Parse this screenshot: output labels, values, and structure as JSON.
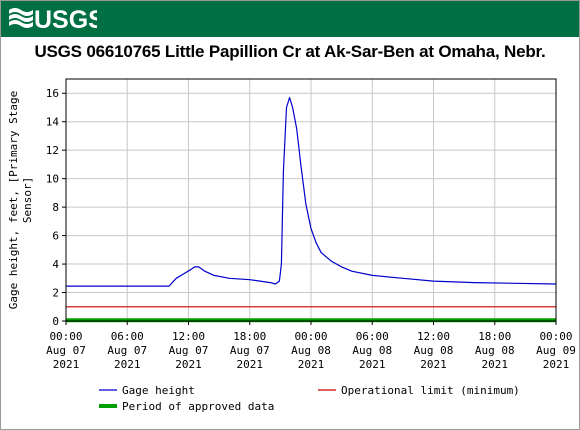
{
  "header": {
    "logo_text": "USGS",
    "brand_color": "#006f41"
  },
  "chart_data": {
    "type": "line",
    "title": "USGS 06610765 Little Papillion Cr at Ak-Sar-Ben at Omaha, Nebr.",
    "ylabel": "Gage height, feet, [Primary Stage Sensor]",
    "ylim": [
      0,
      17
    ],
    "yticks": [
      0,
      2,
      4,
      6,
      8,
      10,
      12,
      14,
      16
    ],
    "xlim_hours": [
      0,
      48
    ],
    "xticks": [
      {
        "hour": 0,
        "time": "00:00",
        "date": "Aug 07",
        "year": "2021"
      },
      {
        "hour": 6,
        "time": "06:00",
        "date": "Aug 07",
        "year": "2021"
      },
      {
        "hour": 12,
        "time": "12:00",
        "date": "Aug 07",
        "year": "2021"
      },
      {
        "hour": 18,
        "time": "18:00",
        "date": "Aug 07",
        "year": "2021"
      },
      {
        "hour": 24,
        "time": "00:00",
        "date": "Aug 08",
        "year": "2021"
      },
      {
        "hour": 30,
        "time": "06:00",
        "date": "Aug 08",
        "year": "2021"
      },
      {
        "hour": 36,
        "time": "12:00",
        "date": "Aug 08",
        "year": "2021"
      },
      {
        "hour": 42,
        "time": "18:00",
        "date": "Aug 08",
        "year": "2021"
      },
      {
        "hour": 48,
        "time": "00:00",
        "date": "Aug 09",
        "year": "2021"
      }
    ],
    "grid": true,
    "series": [
      {
        "name": "Gage height",
        "color": "#0000cc",
        "points": [
          [
            0,
            2.45
          ],
          [
            6,
            2.45
          ],
          [
            10.1,
            2.45
          ],
          [
            10.4,
            2.7
          ],
          [
            10.8,
            3.0
          ],
          [
            11.5,
            3.3
          ],
          [
            12.2,
            3.6
          ],
          [
            12.6,
            3.8
          ],
          [
            13.0,
            3.8
          ],
          [
            13.6,
            3.5
          ],
          [
            14.5,
            3.2
          ],
          [
            16,
            3.0
          ],
          [
            18,
            2.9
          ],
          [
            19,
            2.8
          ],
          [
            20,
            2.7
          ],
          [
            20.5,
            2.6
          ],
          [
            20.9,
            2.8
          ],
          [
            21.1,
            4.0
          ],
          [
            21.3,
            10.5
          ],
          [
            21.6,
            15.0
          ],
          [
            21.9,
            15.7
          ],
          [
            22.2,
            15.0
          ],
          [
            22.6,
            13.5
          ],
          [
            23.0,
            11.0
          ],
          [
            23.5,
            8.2
          ],
          [
            24.0,
            6.5
          ],
          [
            24.5,
            5.5
          ],
          [
            25.0,
            4.8
          ],
          [
            26,
            4.2
          ],
          [
            27,
            3.8
          ],
          [
            28,
            3.5
          ],
          [
            30,
            3.2
          ],
          [
            33,
            3.0
          ],
          [
            36,
            2.8
          ],
          [
            40,
            2.7
          ],
          [
            44,
            2.65
          ],
          [
            48,
            2.6
          ]
        ]
      },
      {
        "name": "Operational limit (minimum)",
        "color": "#cc0000",
        "points": [
          [
            0,
            1.0
          ],
          [
            48,
            1.0
          ]
        ]
      },
      {
        "name": "Period of approved data",
        "color": "#00a000",
        "points": [
          [
            0,
            0.05
          ],
          [
            48,
            0.05
          ]
        ]
      }
    ],
    "legend": {
      "placement": "bottom",
      "entries": [
        {
          "label": "Gage height",
          "color": "#0000cc",
          "style": "line"
        },
        {
          "label": "Operational limit (minimum)",
          "color": "#cc0000",
          "style": "line"
        },
        {
          "label": "Period of approved data",
          "color": "#00a000",
          "style": "thick"
        }
      ]
    }
  }
}
